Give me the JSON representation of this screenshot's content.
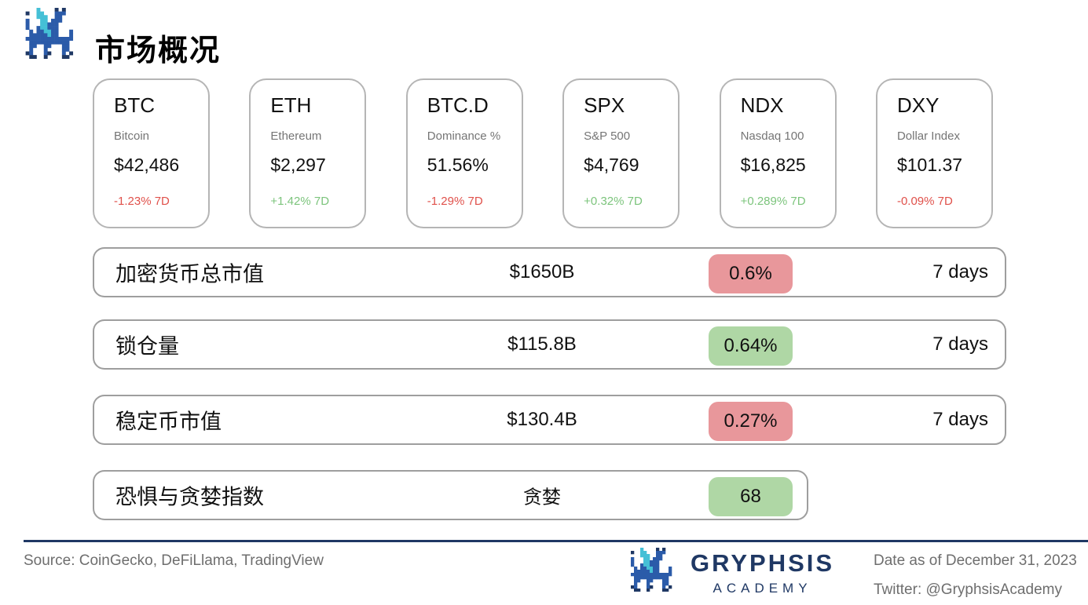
{
  "header": {
    "title": "市场概况",
    "logo": "gryphsis-pixel-dragon"
  },
  "cards": [
    {
      "symbol": "BTC",
      "name": "Bitcoin",
      "value": "$42,486",
      "change": "-1.23% 7D",
      "direction": "down"
    },
    {
      "symbol": "ETH",
      "name": "Ethereum",
      "value": "$2,297",
      "change": "+1.42% 7D",
      "direction": "up"
    },
    {
      "symbol": "BTC.D",
      "name": "Dominance %",
      "value": "51.56%",
      "change": "-1.29% 7D",
      "direction": "down"
    },
    {
      "symbol": "SPX",
      "name": "S&P 500",
      "value": "$4,769",
      "change": "+0.32% 7D",
      "direction": "up"
    },
    {
      "symbol": "NDX",
      "name": "Nasdaq 100",
      "value": "$16,825",
      "change": "+0.289% 7D",
      "direction": "up"
    },
    {
      "symbol": "DXY",
      "name": "Dollar Index",
      "value": "$101.37",
      "change": "-0.09% 7D",
      "direction": "down"
    }
  ],
  "metrics": [
    {
      "label": "加密货币总市值",
      "value": "$1650B",
      "badge": "0.6%",
      "badge_color": "red",
      "period": "7 days"
    },
    {
      "label": "锁仓量",
      "value": "$115.8B",
      "badge": "0.64%",
      "badge_color": "green",
      "period": "7 days"
    },
    {
      "label": "稳定币市值",
      "value": "$130.4B",
      "badge": "0.27%",
      "badge_color": "red",
      "period": "7 days"
    },
    {
      "label": "恐惧与贪婪指数",
      "value": "贪婪",
      "badge": "68",
      "badge_color": "green",
      "period": ""
    }
  ],
  "footer": {
    "source": "Source: CoinGecko, DeFiLlama, TradingView",
    "brand": "GRYPHSIS",
    "brand_sub": "ACADEMY",
    "date": "Date as of December 31, 2023",
    "twitter": "Twitter: @GryphsisAcademy"
  },
  "colors": {
    "navy": "#1F3864",
    "dragon_blue": "#2B5BA9",
    "dragon_cyan": "#45C0D6",
    "red_text": "#E0514B",
    "green_text": "#7CC47C",
    "red_badge": "#E8979B",
    "green_badge": "#AFD7A5"
  }
}
